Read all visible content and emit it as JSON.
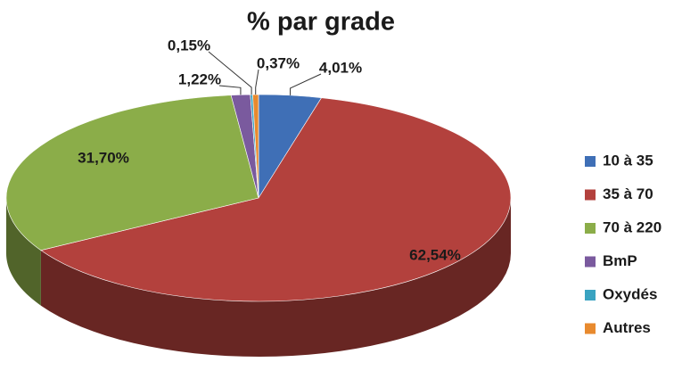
{
  "chart_data": {
    "type": "pie",
    "title": "% par grade",
    "categories": [
      "10 à 35",
      "35 à 70",
      "70 à 220",
      "BmP",
      "Oxydés",
      "Autres"
    ],
    "values": [
      4.01,
      62.54,
      31.7,
      1.22,
      0.15,
      0.37
    ],
    "value_labels": [
      "4,01%",
      "62,54%",
      "31,70%",
      "1,22%",
      "0,15%",
      "0,37%"
    ],
    "colors": [
      "#3f6fb6",
      "#b3413d",
      "#8bad49",
      "#7a5a9e",
      "#3aa3c1",
      "#e88a2e"
    ],
    "legend": "right"
  }
}
